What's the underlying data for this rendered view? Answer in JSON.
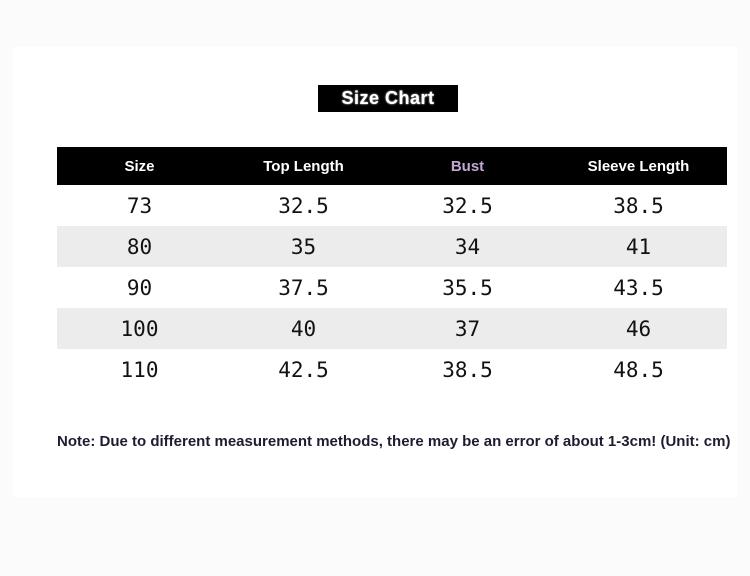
{
  "page": {
    "title": "Size Chart",
    "note": "Note: Due to different measurement methods, there may be an error of about 1-3cm! (Unit: cm)"
  },
  "chart_data": {
    "type": "table",
    "title": "Size Chart",
    "columns": [
      "Size",
      "Top Length",
      "Bust",
      "Sleeve Length"
    ],
    "rows": [
      [
        "73",
        "32.5",
        "32.5",
        "38.5"
      ],
      [
        "80",
        "35",
        "34",
        "41"
      ],
      [
        "90",
        "37.5",
        "35.5",
        "43.5"
      ],
      [
        "100",
        "40",
        "37",
        "46"
      ],
      [
        "110",
        "42.5",
        "38.5",
        "48.5"
      ]
    ],
    "unit": "cm"
  },
  "colors": {
    "page_bg": "#fbfbfb",
    "card_bg": "#ffffff",
    "header_bg": "#000000",
    "header_text": "#ffffff",
    "bust_header_text": "#bfa8d2",
    "alt_row_bg": "#ececec",
    "cell_text": "#121212",
    "note_text": "#1d1d30"
  }
}
